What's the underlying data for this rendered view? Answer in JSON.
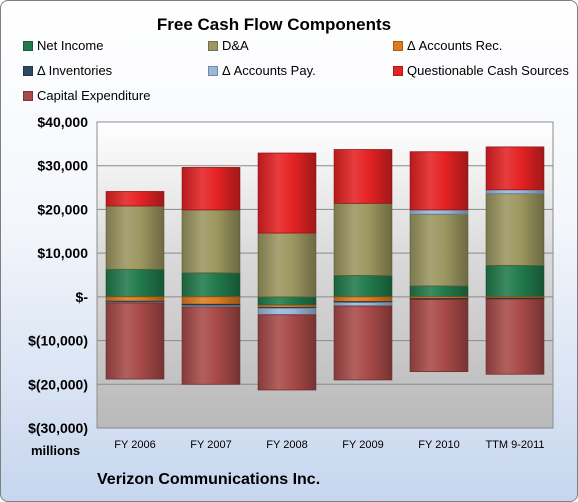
{
  "chart_data": {
    "type": "bar",
    "stacked": true,
    "title": "Free Cash Flow Components",
    "footer": "Verizon Communications Inc.",
    "units_label": "millions",
    "categories": [
      "FY 2006",
      "FY 2007",
      "FY 2008",
      "FY 2009",
      "FY 2010",
      "TTM 9-2011"
    ],
    "ylim": [
      -30000,
      40000
    ],
    "yticks": [
      -30000,
      -20000,
      -10000,
      0,
      10000,
      20000,
      30000,
      40000
    ],
    "ytick_labels": [
      "$(30,000)",
      "$(20,000)",
      "$(10,000)",
      "$-",
      "$10,000",
      "$20,000",
      "$30,000",
      "$40,000"
    ],
    "grid": true,
    "legend_position": "top",
    "series": [
      {
        "name": "Net Income",
        "color": "#217a4b",
        "values": [
          6300,
          5500,
          -1900,
          4900,
          2500,
          7200
        ]
      },
      {
        "name": "D&A",
        "color": "#9c9660",
        "values": [
          14500,
          14400,
          14600,
          16500,
          16400,
          16400
        ]
      },
      {
        "name": "Δ Accounts Rec.",
        "color": "#e07b20",
        "values": [
          -1000,
          -1700,
          -500,
          -1100,
          -400,
          -300
        ]
      },
      {
        "name": "Δ Inventories",
        "color": "#2d4a62",
        "values": [
          -200,
          -300,
          -200,
          -200,
          -200,
          -200
        ]
      },
      {
        "name": "Δ Accounts Pay.",
        "color": "#9ab8dc",
        "values": [
          -200,
          -300,
          -1500,
          -800,
          1000,
          900
        ]
      },
      {
        "name": "Questionable Cash Sources",
        "color": "#e52224",
        "values": [
          3300,
          9700,
          18300,
          12300,
          13300,
          9800
        ]
      },
      {
        "name": "Capital Expenditure",
        "color": "#a84a48",
        "values": [
          -17400,
          -17700,
          -17200,
          -16900,
          -16500,
          -17200
        ]
      }
    ]
  }
}
